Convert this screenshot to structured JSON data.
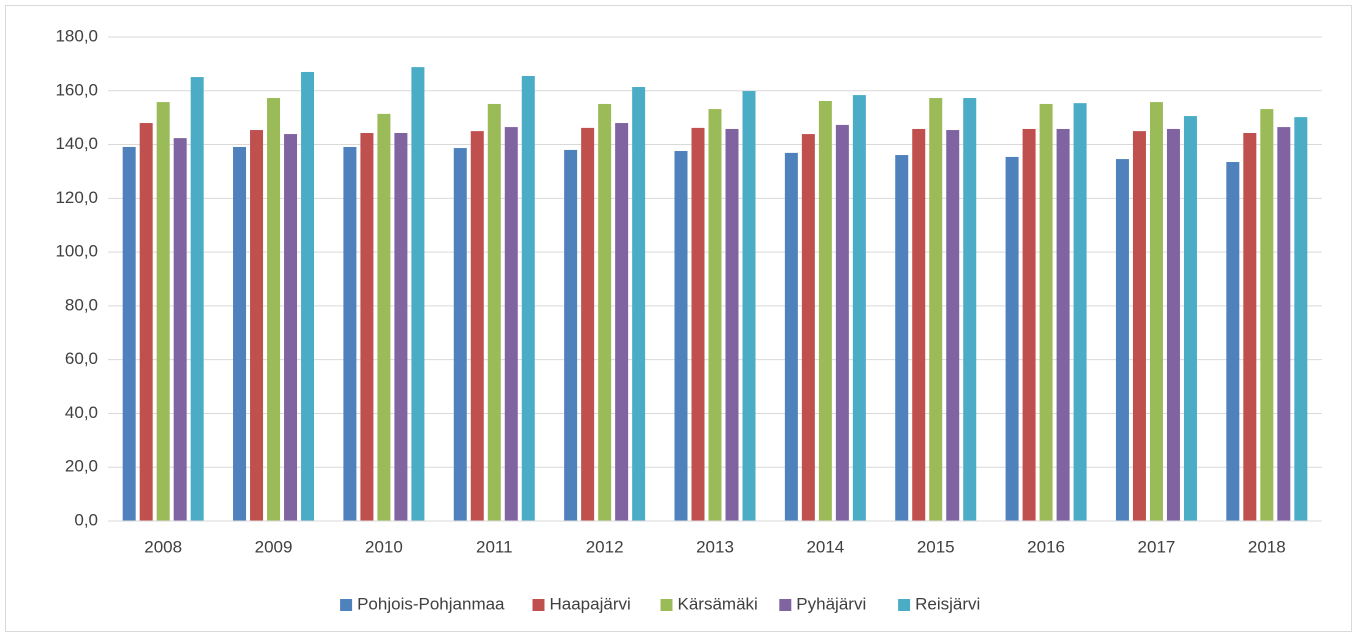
{
  "chart_data": {
    "type": "bar",
    "categories": [
      "2008",
      "2009",
      "2010",
      "2011",
      "2012",
      "2013",
      "2014",
      "2015",
      "2016",
      "2017",
      "2018"
    ],
    "series": [
      {
        "name": "Pohjois-Pohjanmaa",
        "color": "#4f81bd",
        "values": [
          139.1,
          139.1,
          139.1,
          138.7,
          138.0,
          137.6,
          136.9,
          136.1,
          135.4,
          134.6,
          133.5
        ]
      },
      {
        "name": "Haapajärvi",
        "color": "#c0504d",
        "values": [
          148.0,
          145.4,
          144.3,
          145.0,
          146.2,
          146.2,
          143.9,
          145.8,
          145.8,
          145.0,
          144.3
        ]
      },
      {
        "name": "Kärsämäki",
        "color": "#9bbb59",
        "values": [
          155.8,
          157.3,
          151.4,
          155.1,
          155.1,
          153.2,
          156.2,
          157.3,
          155.1,
          155.8,
          153.2
        ]
      },
      {
        "name": "Pyhäjärvi",
        "color": "#8064a2",
        "values": [
          142.4,
          143.9,
          144.3,
          146.5,
          148.0,
          145.8,
          147.3,
          145.4,
          145.8,
          145.8,
          146.5
        ]
      },
      {
        "name": "Reisjärvi",
        "color": "#4bacc6",
        "values": [
          165.1,
          167.0,
          168.8,
          165.5,
          161.4,
          159.9,
          158.4,
          157.3,
          155.4,
          150.6,
          150.2
        ]
      }
    ],
    "ylim": [
      0,
      180
    ],
    "yticks": [
      {
        "value": 0,
        "label": "0,0"
      },
      {
        "value": 20,
        "label": "20,0"
      },
      {
        "value": 40,
        "label": "40,0"
      },
      {
        "value": 60,
        "label": "60,0"
      },
      {
        "value": 80,
        "label": "80,0"
      },
      {
        "value": 100,
        "label": "100,0"
      },
      {
        "value": 120,
        "label": "120,0"
      },
      {
        "value": 140,
        "label": "140,0"
      },
      {
        "value": 160,
        "label": "160,0"
      },
      {
        "value": 180,
        "label": "180,0"
      }
    ],
    "grid": true,
    "legend": "bottom"
  }
}
